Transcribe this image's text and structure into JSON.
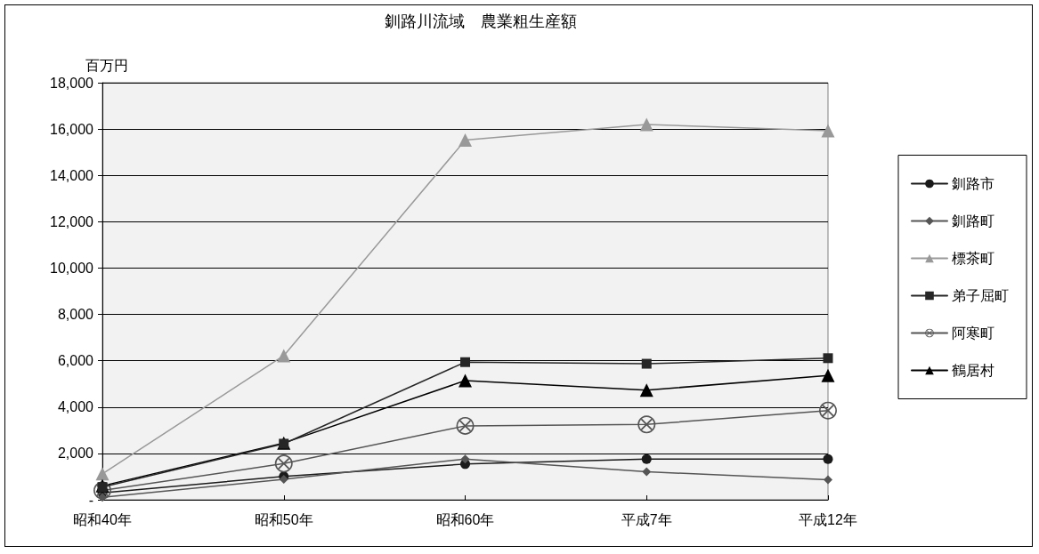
{
  "chart_data": {
    "type": "line",
    "title": "釧路川流域　農業粗生産額",
    "ylabel": "百万円",
    "categories": [
      "昭和40年",
      "昭和50年",
      "昭和60年",
      "平成7年",
      "平成12年"
    ],
    "series": [
      {
        "name": "釧路市",
        "color": "#1a1a1a",
        "marker": "circle",
        "values": [
          300,
          1010,
          1540,
          1760,
          1760
        ]
      },
      {
        "name": "釧路町",
        "color": "#555555",
        "marker": "diamond",
        "values": [
          110,
          880,
          1760,
          1210,
          860
        ]
      },
      {
        "name": "標茶町",
        "color": "#999999",
        "marker": "triangle",
        "values": [
          1120,
          6220,
          15520,
          16200,
          15930
        ]
      },
      {
        "name": "弟子屈町",
        "color": "#262626",
        "marker": "square",
        "values": [
          550,
          2420,
          5940,
          5870,
          6110
        ]
      },
      {
        "name": "阿寒町",
        "color": "#555555",
        "marker": "cross",
        "values": [
          400,
          1560,
          3190,
          3250,
          3850
        ]
      },
      {
        "name": "鶴居村",
        "color": "#000000",
        "marker": "triangle",
        "values": [
          600,
          2450,
          5140,
          4730,
          5360
        ]
      }
    ],
    "ylim": [
      0,
      18000
    ],
    "yticks": [
      {
        "value": 0,
        "label": "-"
      },
      {
        "value": 2000,
        "label": "2,000"
      },
      {
        "value": 4000,
        "label": "4,000"
      },
      {
        "value": 6000,
        "label": "6,000"
      },
      {
        "value": 8000,
        "label": "8,000"
      },
      {
        "value": 10000,
        "label": "10,000"
      },
      {
        "value": 12000,
        "label": "12,000"
      },
      {
        "value": 14000,
        "label": "14,000"
      },
      {
        "value": 16000,
        "label": "16,000"
      },
      {
        "value": 18000,
        "label": "18,000"
      }
    ],
    "grid": "y",
    "legend": "right"
  }
}
